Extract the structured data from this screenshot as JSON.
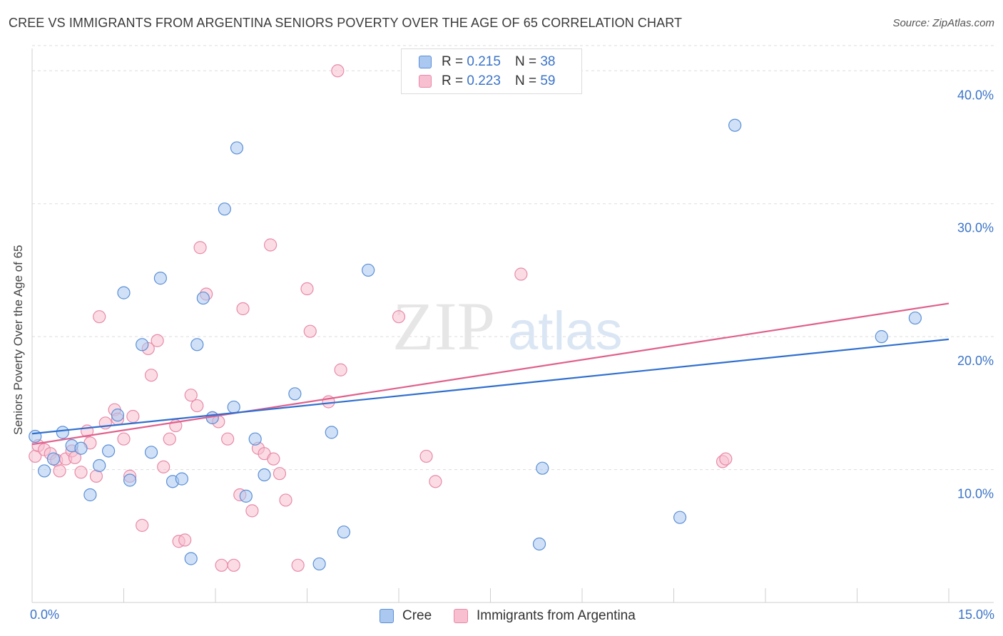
{
  "title": "CREE VS IMMIGRANTS FROM ARGENTINA SENIORS POVERTY OVER THE AGE OF 65 CORRELATION CHART",
  "source": "Source: ZipAtlas.com",
  "watermark": {
    "zip": "ZIP",
    "atlas": "atlas"
  },
  "legend_top": {
    "r_label": "R =",
    "n_label": "N =",
    "rows": [
      {
        "r": "0.215",
        "n": "38"
      },
      {
        "r": "0.223",
        "n": "59"
      }
    ]
  },
  "colors": {
    "cree_fill": "#aac8f0",
    "cree_stroke": "#5b8fd6",
    "cree_line": "#2f6fcf",
    "arg_fill": "#f7bfd0",
    "arg_stroke": "#e88aa8",
    "arg_line": "#e0608c",
    "grid": "#dddddd",
    "tick_text": "#3b74c8"
  },
  "chart_data": {
    "type": "scatter",
    "title": "CREE VS IMMIGRANTS FROM ARGENTINA SENIORS POVERTY OVER THE AGE OF 65 CORRELATION CHART",
    "xlabel": "",
    "ylabel": "Seniors Poverty Over the Age of 65",
    "xlim": [
      0,
      15
    ],
    "ylim": [
      0,
      42
    ],
    "x_tick_labels": [
      "0.0%",
      "15.0%"
    ],
    "y_ticks": [
      10,
      20,
      30,
      40
    ],
    "y_tick_labels": [
      "10.0%",
      "20.0%",
      "30.0%",
      "40.0%"
    ],
    "legend_position": "bottom-center",
    "series": [
      {
        "name": "Cree",
        "r": 0.215,
        "n": 38,
        "trend": {
          "x0": 0,
          "y0": 12.7,
          "x1": 15,
          "y1": 19.8
        },
        "points": [
          [
            0.05,
            12.5
          ],
          [
            0.2,
            9.9
          ],
          [
            0.35,
            10.8
          ],
          [
            0.5,
            12.8
          ],
          [
            0.65,
            11.8
          ],
          [
            0.8,
            11.6
          ],
          [
            0.95,
            8.1
          ],
          [
            1.1,
            10.3
          ],
          [
            1.25,
            11.4
          ],
          [
            1.4,
            14.1
          ],
          [
            1.5,
            23.3
          ],
          [
            1.6,
            9.2
          ],
          [
            1.8,
            19.4
          ],
          [
            1.95,
            11.3
          ],
          [
            2.1,
            24.4
          ],
          [
            2.3,
            9.1
          ],
          [
            2.45,
            9.3
          ],
          [
            2.6,
            3.3
          ],
          [
            2.7,
            19.4
          ],
          [
            2.8,
            22.9
          ],
          [
            2.95,
            13.9
          ],
          [
            3.15,
            29.6
          ],
          [
            3.3,
            14.7
          ],
          [
            3.35,
            34.2
          ],
          [
            3.5,
            8.0
          ],
          [
            3.65,
            12.3
          ],
          [
            3.8,
            9.6
          ],
          [
            4.3,
            15.7
          ],
          [
            4.7,
            2.9
          ],
          [
            4.9,
            12.8
          ],
          [
            5.1,
            5.3
          ],
          [
            5.5,
            25.0
          ],
          [
            8.3,
            4.4
          ],
          [
            8.35,
            10.1
          ],
          [
            10.6,
            6.4
          ],
          [
            11.5,
            35.9
          ],
          [
            13.9,
            20.0
          ],
          [
            14.45,
            21.4
          ]
        ]
      },
      {
        "name": "Immigrants from Argentina",
        "r": 0.223,
        "n": 59,
        "trend": {
          "x0": 0,
          "y0": 11.9,
          "x1": 15,
          "y1": 22.5
        },
        "points": [
          [
            0.05,
            11.0
          ],
          [
            0.1,
            11.8
          ],
          [
            0.2,
            11.5
          ],
          [
            0.3,
            11.2
          ],
          [
            0.4,
            10.7
          ],
          [
            0.45,
            9.9
          ],
          [
            0.55,
            10.8
          ],
          [
            0.65,
            11.4
          ],
          [
            0.7,
            10.9
          ],
          [
            0.8,
            9.8
          ],
          [
            0.9,
            12.9
          ],
          [
            0.95,
            12.0
          ],
          [
            1.05,
            9.5
          ],
          [
            1.1,
            21.5
          ],
          [
            1.2,
            13.5
          ],
          [
            1.35,
            14.5
          ],
          [
            1.4,
            13.8
          ],
          [
            1.5,
            12.3
          ],
          [
            1.6,
            9.5
          ],
          [
            1.65,
            14.0
          ],
          [
            1.8,
            5.8
          ],
          [
            1.9,
            19.1
          ],
          [
            1.95,
            17.1
          ],
          [
            2.05,
            19.7
          ],
          [
            2.15,
            10.2
          ],
          [
            2.25,
            12.3
          ],
          [
            2.35,
            13.3
          ],
          [
            2.4,
            4.6
          ],
          [
            2.5,
            4.7
          ],
          [
            2.6,
            15.6
          ],
          [
            2.7,
            14.8
          ],
          [
            2.75,
            26.7
          ],
          [
            2.85,
            23.2
          ],
          [
            2.95,
            13.9
          ],
          [
            3.05,
            13.6
          ],
          [
            3.1,
            2.8
          ],
          [
            3.2,
            12.3
          ],
          [
            3.3,
            2.8
          ],
          [
            3.4,
            8.1
          ],
          [
            3.45,
            22.1
          ],
          [
            3.6,
            6.9
          ],
          [
            3.7,
            11.6
          ],
          [
            3.8,
            11.2
          ],
          [
            3.9,
            26.9
          ],
          [
            3.95,
            10.8
          ],
          [
            4.05,
            9.7
          ],
          [
            4.15,
            7.7
          ],
          [
            4.35,
            2.8
          ],
          [
            4.5,
            23.6
          ],
          [
            4.55,
            20.4
          ],
          [
            4.85,
            15.1
          ],
          [
            5.0,
            40.0
          ],
          [
            5.05,
            17.5
          ],
          [
            6.0,
            21.5
          ],
          [
            6.45,
            11.0
          ],
          [
            6.6,
            9.1
          ],
          [
            8.0,
            24.7
          ],
          [
            11.3,
            10.6
          ],
          [
            11.35,
            10.8
          ]
        ]
      }
    ]
  }
}
